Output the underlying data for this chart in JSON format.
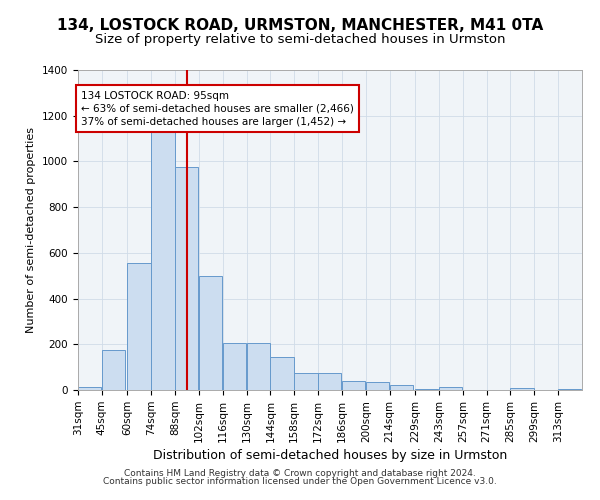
{
  "title": "134, LOSTOCK ROAD, URMSTON, MANCHESTER, M41 0TA",
  "subtitle": "Size of property relative to semi-detached houses in Urmston",
  "xlabel": "Distribution of semi-detached houses by size in Urmston",
  "ylabel": "Number of semi-detached properties",
  "footer1": "Contains HM Land Registry data © Crown copyright and database right 2024.",
  "footer2": "Contains public sector information licensed under the Open Government Licence v3.0.",
  "bar_color": "#ccddf0",
  "bar_edge_color": "#6699cc",
  "vline_x": 95,
  "vline_color": "#cc0000",
  "annotation_box_color": "#cc0000",
  "annotation_line1": "134 LOSTOCK ROAD: 95sqm",
  "annotation_line2": "← 63% of semi-detached houses are smaller (2,466)",
  "annotation_line3": "37% of semi-detached houses are larger (1,452) →",
  "bins": [
    31,
    45,
    60,
    74,
    88,
    102,
    116,
    130,
    144,
    158,
    172,
    186,
    200,
    214,
    229,
    243,
    257,
    271,
    285,
    299,
    313
  ],
  "values": [
    15,
    175,
    555,
    1200,
    975,
    500,
    205,
    205,
    145,
    75,
    75,
    40,
    35,
    20,
    5,
    15,
    0,
    0,
    10,
    0,
    5
  ],
  "bin_width": 14,
  "ylim": [
    0,
    1400
  ],
  "yticks": [
    0,
    200,
    400,
    600,
    800,
    1000,
    1200,
    1400
  ],
  "title_fontsize": 11,
  "subtitle_fontsize": 9.5,
  "ylabel_fontsize": 8,
  "xlabel_fontsize": 9,
  "tick_fontsize": 7.5,
  "footer_fontsize": 6.5,
  "annotation_fontsize": 7.5
}
